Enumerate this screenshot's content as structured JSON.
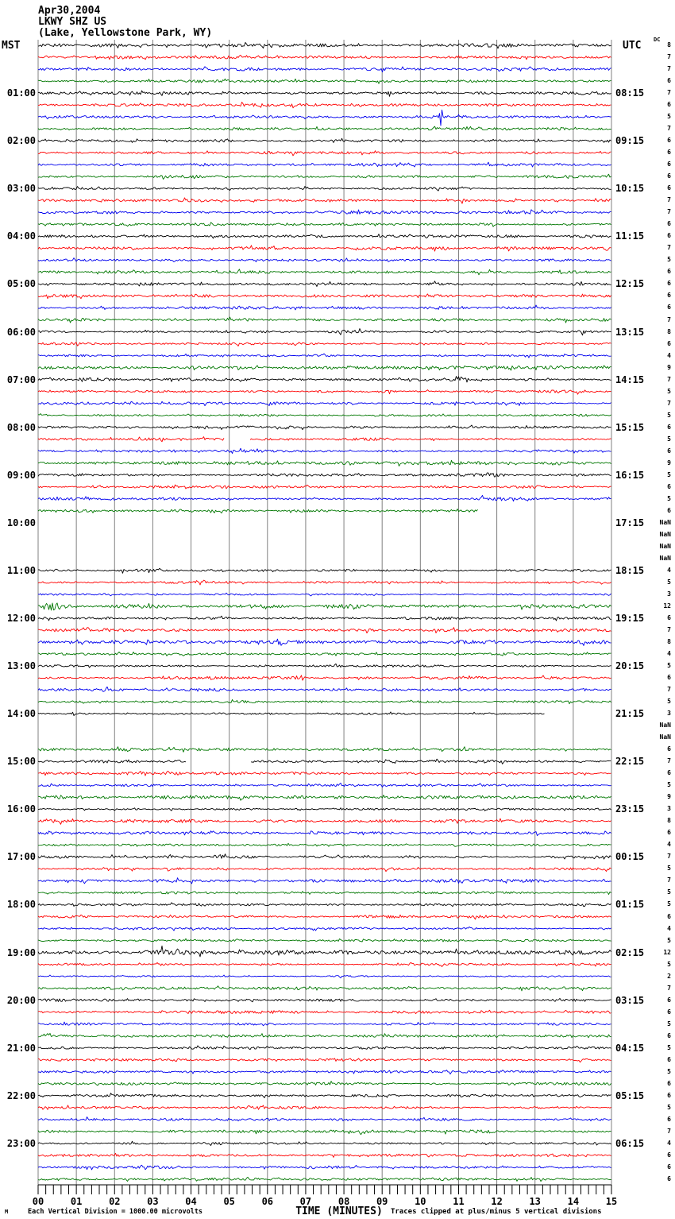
{
  "header": {
    "date": "Apr30,2004",
    "station": "LKWY SHZ US",
    "location": "(Lake, Yellowstone Park, WY)"
  },
  "columns": {
    "left_tz": "MST",
    "right_tz": "UTC",
    "dc_header": "DC"
  },
  "footer": {
    "left": "Each Vertical Division = 1000.00 microvolts",
    "xlabel": "TIME (MINUTES)",
    "right": "Traces clipped at plus/minus 5 vertical divisions",
    "corner_mark": "M"
  },
  "chart_data": {
    "type": "line",
    "title": "LKWY SHZ US",
    "xlabel": "TIME (MINUTES)",
    "x_range": [
      0,
      15
    ],
    "rows_per_hour": 4,
    "minutes_per_row": 15,
    "grid": true,
    "grid_color": "#808080",
    "color_cycle": [
      "#000000",
      "#ff0000",
      "#0000ee",
      "#007700"
    ],
    "division_microvolts": "1000.00",
    "clip_divisions": 5,
    "minute_labels": [
      "00",
      "01",
      "02",
      "03",
      "04",
      "05",
      "06",
      "07",
      "08",
      "09",
      "10",
      "11",
      "12",
      "13",
      "14",
      "15"
    ],
    "left_time_labels": [
      "01:00",
      "02:00",
      "03:00",
      "04:00",
      "05:00",
      "06:00",
      "07:00",
      "08:00",
      "09:00",
      "10:00",
      "11:00",
      "12:00",
      "13:00",
      "14:00",
      "15:00",
      "16:00",
      "17:00",
      "18:00",
      "19:00",
      "20:00",
      "21:00",
      "22:00",
      "23:00"
    ],
    "right_time_labels": [
      "08:15",
      "09:15",
      "10:15",
      "11:15",
      "12:15",
      "13:15",
      "14:15",
      "15:15",
      "16:15",
      "17:15",
      "18:15",
      "19:15",
      "20:15",
      "21:15",
      "22:15",
      "23:15",
      "00:15",
      "01:15",
      "02:15",
      "03:15",
      "04:15",
      "05:15",
      "06:15"
    ],
    "traces": [
      {
        "v": "8"
      },
      {
        "v": "7"
      },
      {
        "v": "7"
      },
      {
        "v": "6"
      },
      {
        "v": "7"
      },
      {
        "v": "6",
        "events": [
          {
            "t": "burst",
            "x0": 8.1,
            "x1": 8.7,
            "a": 2.2
          }
        ]
      },
      {
        "v": "5",
        "events": [
          {
            "t": "spike",
            "x": 10.52,
            "h": 11
          }
        ]
      },
      {
        "v": "7"
      },
      {
        "v": "6"
      },
      {
        "v": "6"
      },
      {
        "v": "6"
      },
      {
        "v": "6"
      },
      {
        "v": "6"
      },
      {
        "v": "7"
      },
      {
        "v": "7"
      },
      {
        "v": "6"
      },
      {
        "v": "6"
      },
      {
        "v": "7"
      },
      {
        "v": "5"
      },
      {
        "v": "6"
      },
      {
        "v": "6"
      },
      {
        "v": "6"
      },
      {
        "v": "6"
      },
      {
        "v": "7"
      },
      {
        "v": "8"
      },
      {
        "v": "6"
      },
      {
        "v": "4"
      },
      {
        "v": "9"
      },
      {
        "v": "7"
      },
      {
        "v": "5"
      },
      {
        "v": "7",
        "events": [
          {
            "t": "spike",
            "x": 10.9,
            "h": 2.5
          }
        ]
      },
      {
        "v": "5"
      },
      {
        "v": "6"
      },
      {
        "v": "5",
        "segments": [
          [
            0,
            4.87
          ],
          [
            5.55,
            15
          ]
        ],
        "events": [
          {
            "t": "burst",
            "x0": 0,
            "x1": 4.8,
            "a": 0.5
          }
        ]
      },
      {
        "v": "6"
      },
      {
        "v": "9"
      },
      {
        "v": "5",
        "events": [
          {
            "t": "burst",
            "x0": 11.3,
            "x1": 12.3,
            "a": 1.6
          }
        ]
      },
      {
        "v": "6"
      },
      {
        "v": "5",
        "events": [
          {
            "t": "burst",
            "x0": 11.2,
            "x1": 12.6,
            "a": 1.5
          }
        ]
      },
      {
        "v": "6",
        "segments": [
          [
            0,
            11.5
          ]
        ]
      },
      {
        "v": "NaN",
        "segments": []
      },
      {
        "v": "NaN",
        "segments": []
      },
      {
        "v": "NaN",
        "segments": []
      },
      {
        "v": "NaN",
        "segments": []
      },
      {
        "v": "4",
        "events": [
          {
            "t": "burst",
            "x0": 2.0,
            "x1": 3.8,
            "a": 0.9
          }
        ]
      },
      {
        "v": "5"
      },
      {
        "v": "3"
      },
      {
        "v": "12",
        "events": [
          {
            "t": "spike",
            "x": 0.35,
            "h": 5
          },
          {
            "t": "burst",
            "x0": 0.0,
            "x1": 0.7,
            "a": 2.2
          }
        ]
      },
      {
        "v": "6"
      },
      {
        "v": "7"
      },
      {
        "v": "8"
      },
      {
        "v": "4"
      },
      {
        "v": "5"
      },
      {
        "v": "6"
      },
      {
        "v": "7"
      },
      {
        "v": "5"
      },
      {
        "v": "3",
        "segments": [
          [
            0,
            13.25
          ]
        ]
      },
      {
        "v": "NaN",
        "segments": []
      },
      {
        "v": "NaN",
        "segments": []
      },
      {
        "v": "6"
      },
      {
        "v": "7",
        "segments": [
          [
            0,
            3.88
          ],
          [
            5.57,
            15
          ]
        ]
      },
      {
        "v": "6"
      },
      {
        "v": "5"
      },
      {
        "v": "9"
      },
      {
        "v": "3"
      },
      {
        "v": "8"
      },
      {
        "v": "6"
      },
      {
        "v": "4"
      },
      {
        "v": "7",
        "events": [
          {
            "t": "burst",
            "x0": 4.5,
            "x1": 5.1,
            "a": 1.4
          }
        ]
      },
      {
        "v": "5"
      },
      {
        "v": "7"
      },
      {
        "v": "5"
      },
      {
        "v": "5"
      },
      {
        "v": "6"
      },
      {
        "v": "4"
      },
      {
        "v": "5"
      },
      {
        "v": "12",
        "events": [
          {
            "t": "burst",
            "x0": 3.0,
            "x1": 3.5,
            "a": 1.2
          }
        ]
      },
      {
        "v": "5"
      },
      {
        "v": "2"
      },
      {
        "v": "7"
      },
      {
        "v": "6"
      },
      {
        "v": "6"
      },
      {
        "v": "5"
      },
      {
        "v": "6"
      },
      {
        "v": "5"
      },
      {
        "v": "6"
      },
      {
        "v": "5"
      },
      {
        "v": "6"
      },
      {
        "v": "6"
      },
      {
        "v": "5"
      },
      {
        "v": "6"
      },
      {
        "v": "7"
      },
      {
        "v": "4"
      },
      {
        "v": "6"
      },
      {
        "v": "6"
      },
      {
        "v": "6"
      }
    ]
  }
}
